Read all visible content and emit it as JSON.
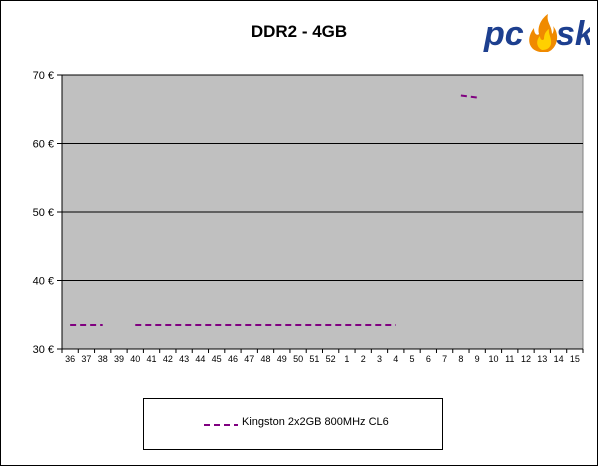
{
  "chart_data": {
    "type": "line",
    "title": "DDR2 - 4GB",
    "xlabel": "",
    "ylabel": "",
    "categories": [
      "36",
      "37",
      "38",
      "39",
      "40",
      "41",
      "42",
      "43",
      "44",
      "45",
      "46",
      "47",
      "48",
      "49",
      "50",
      "51",
      "52",
      "1",
      "2",
      "3",
      "4",
      "5",
      "6",
      "7",
      "8",
      "9",
      "10",
      "11",
      "12",
      "13",
      "14",
      "15"
    ],
    "ylim": [
      30,
      70
    ],
    "yticks": [
      30,
      40,
      50,
      60,
      70
    ],
    "ytick_labels": [
      "30 €",
      "40 €",
      "50 €",
      "60 €",
      "70 €"
    ],
    "grid": true,
    "legend_position": "bottom",
    "series": [
      {
        "name": "Kingston 2x2GB 800MHz CL6",
        "color": "#800080",
        "style": "dashed",
        "values": [
          33.5,
          33.5,
          33.5,
          null,
          33.5,
          33.5,
          33.5,
          33.5,
          33.5,
          33.5,
          33.5,
          33.5,
          33.5,
          33.5,
          33.5,
          33.5,
          33.5,
          33.5,
          33.5,
          33.5,
          33.5,
          null,
          null,
          null,
          67.0,
          66.7,
          null,
          null,
          null,
          null,
          null,
          null
        ]
      }
    ]
  },
  "colors": {
    "plot_background": "#c0c0c0",
    "gridline": "#000000"
  },
  "logo": {
    "text_pc": "pc",
    "text_sk": "sk",
    "icon": "flame-icon"
  }
}
